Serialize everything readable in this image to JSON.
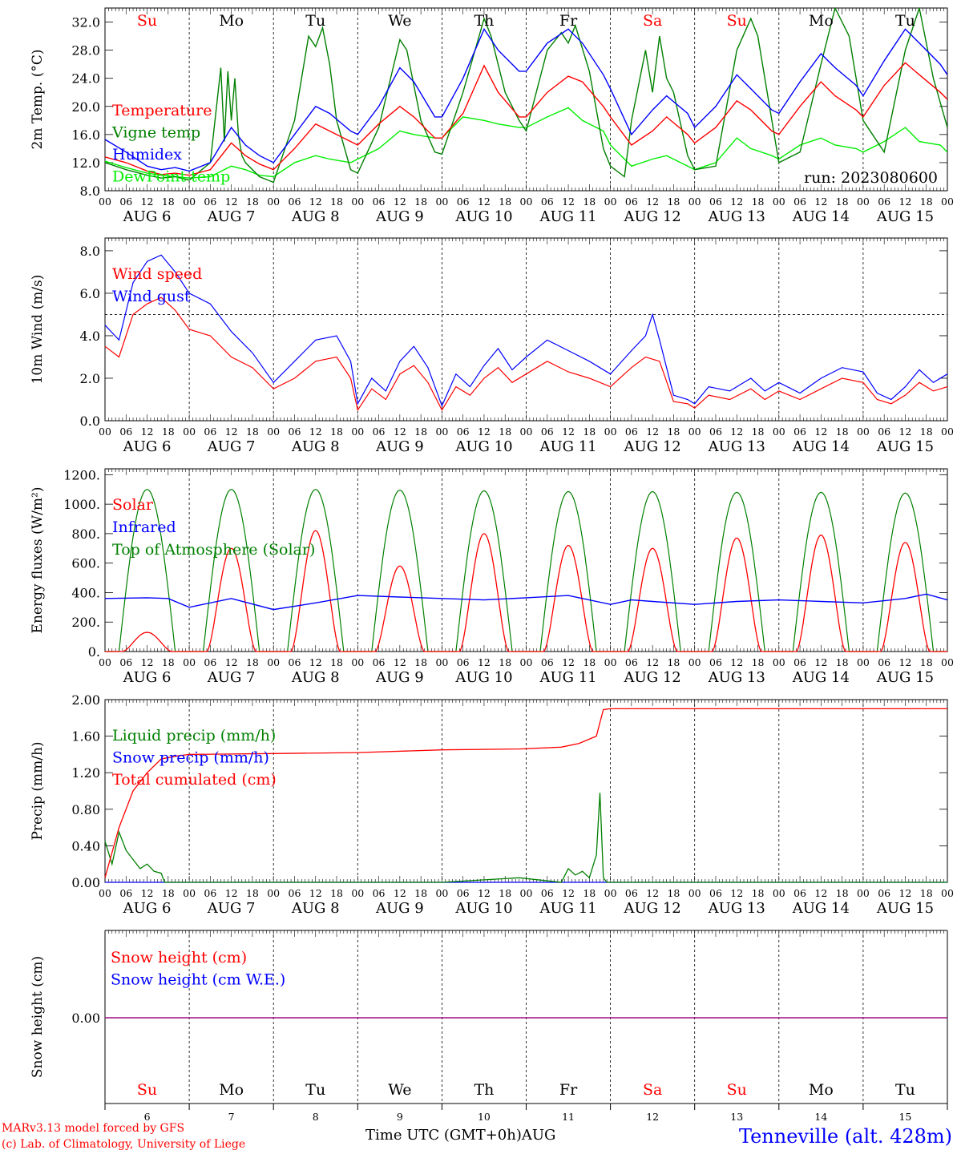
{
  "colors": {
    "red": "#ff0000",
    "green": "#008000",
    "light_green": "#00ee00",
    "blue": "#0000ff",
    "purple": "#8000a0",
    "black": "#000000"
  },
  "days": {
    "weekday_labels": [
      "Su",
      "Mo",
      "Tu",
      "We",
      "Th",
      "Fr",
      "Sa",
      "Su",
      "Mo",
      "Tu"
    ],
    "weekday_colors": [
      "#ff0000",
      "#000000",
      "#000000",
      "#000000",
      "#000000",
      "#000000",
      "#ff0000",
      "#ff0000",
      "#000000",
      "#000000"
    ],
    "date_labels": [
      "AUG  6",
      "AUG  7",
      "AUG  8",
      "AUG  9",
      "AUG 10",
      "AUG 11",
      "AUG 12",
      "AUG 13",
      "AUG 14",
      "AUG 15"
    ],
    "day_numbers": [
      "6",
      "7",
      "8",
      "9",
      "10",
      "11",
      "12",
      "13",
      "14",
      "15"
    ],
    "hour_ticks": [
      "00",
      "06",
      "12",
      "18"
    ],
    "final_hour_tick": "00"
  },
  "run_label": "run: 2023080600",
  "footer": {
    "credit_line1": "MARv3.13 model forced by GFS",
    "credit_line2": "(c) Lab. of Climatology, University of Liege",
    "x_axis_label": "Time UTC (GMT+0h)",
    "month": "AUG",
    "station": "Tenneville (alt. 428m)"
  },
  "chart_data": [
    {
      "type": "line",
      "id": "temperature",
      "ylabel": "2m Temp. (°C)",
      "ylim": [
        8,
        34
      ],
      "yticks": [
        "32.0",
        "28.0",
        "24.0",
        "20.0",
        "16.0",
        "12.0",
        "8.0"
      ],
      "ytick_values": [
        32,
        28,
        24,
        20,
        16,
        12,
        8
      ],
      "x_unit": "hours since AUG 6 00 UTC",
      "xlim": [
        0,
        240
      ],
      "series": [
        {
          "name": "Temperature",
          "color": "#ff0000",
          "x": [
            0,
            6,
            12,
            16,
            20,
            24,
            30,
            36,
            40,
            44,
            48,
            54,
            60,
            64,
            70,
            72,
            78,
            84,
            88,
            94,
            96,
            102,
            108,
            112,
            118,
            120,
            126,
            132,
            136,
            142,
            144,
            150,
            156,
            160,
            166,
            168,
            174,
            180,
            184,
            190,
            192,
            198,
            204,
            208,
            214,
            216,
            222,
            228,
            232,
            238,
            240
          ],
          "y": [
            12.8,
            12.0,
            10.8,
            10.3,
            10.5,
            10.2,
            11.0,
            14.8,
            13.0,
            11.8,
            11.0,
            14.0,
            17.5,
            16.5,
            15.0,
            14.5,
            17.5,
            20.0,
            18.5,
            15.5,
            15.5,
            19.0,
            25.8,
            22.0,
            18.5,
            18.5,
            22.0,
            24.3,
            23.5,
            20.0,
            18.5,
            14.5,
            16.5,
            18.5,
            16.0,
            14.8,
            17.0,
            20.8,
            19.5,
            16.5,
            16.0,
            20.0,
            23.5,
            21.5,
            19.5,
            18.5,
            23.0,
            26.2,
            24.5,
            22.0,
            21.0
          ]
        },
        {
          "name": "Vigne temp",
          "color": "#008000",
          "x": [
            0,
            6,
            12,
            16,
            20,
            24,
            30,
            33,
            34,
            35,
            36,
            37,
            38,
            39,
            40,
            44,
            48,
            54,
            58,
            60,
            62,
            64,
            66,
            70,
            72,
            78,
            84,
            86,
            90,
            94,
            96,
            102,
            108,
            110,
            114,
            118,
            120,
            126,
            130,
            132,
            134,
            138,
            142,
            144,
            148,
            150,
            154,
            156,
            158,
            160,
            162,
            166,
            168,
            174,
            180,
            184,
            186,
            190,
            192,
            198,
            204,
            208,
            212,
            216,
            222,
            228,
            232,
            236,
            240
          ],
          "y": [
            12.0,
            11.0,
            10.2,
            9.8,
            10.0,
            9.5,
            12.0,
            25.5,
            15.0,
            25.0,
            18.0,
            24.0,
            16.0,
            13.0,
            12.0,
            10.0,
            9.2,
            18.0,
            30.0,
            28.5,
            31.2,
            26.0,
            18.0,
            11.0,
            10.5,
            17.0,
            29.5,
            28.0,
            18.0,
            13.5,
            13.2,
            22.0,
            32.5,
            30.0,
            22.0,
            18.0,
            16.5,
            28.0,
            30.5,
            29.0,
            31.5,
            25.0,
            14.0,
            11.5,
            10.0,
            18.0,
            28.0,
            22.0,
            30.0,
            24.0,
            22.0,
            13.0,
            11.0,
            11.5,
            28.0,
            32.5,
            30.0,
            18.0,
            12.0,
            13.5,
            26.0,
            34.0,
            30.0,
            18.0,
            13.5,
            28.0,
            34.0,
            24.0,
            17.0
          ]
        },
        {
          "name": "Humidex",
          "color": "#0000ff",
          "x": [
            0,
            6,
            12,
            16,
            20,
            24,
            30,
            36,
            40,
            44,
            48,
            54,
            60,
            64,
            70,
            72,
            78,
            84,
            88,
            94,
            96,
            102,
            108,
            112,
            118,
            120,
            126,
            132,
            136,
            142,
            144,
            150,
            156,
            160,
            166,
            168,
            174,
            180,
            184,
            190,
            192,
            198,
            204,
            208,
            214,
            216,
            222,
            228,
            232,
            238,
            240
          ],
          "y": [
            15.3,
            13.5,
            11.5,
            11.0,
            11.3,
            10.8,
            12.0,
            17.0,
            14.5,
            13.0,
            12.0,
            16.0,
            20.0,
            19.0,
            16.5,
            16.0,
            20.0,
            25.5,
            23.5,
            18.5,
            18.5,
            24.0,
            31.0,
            28.0,
            25.0,
            25.0,
            29.0,
            31.0,
            29.0,
            24.5,
            22.5,
            16.0,
            19.5,
            21.5,
            19.0,
            17.0,
            20.0,
            24.5,
            22.5,
            19.5,
            19.0,
            23.5,
            27.5,
            25.5,
            23.0,
            21.5,
            26.5,
            31.0,
            29.0,
            26.0,
            24.5
          ]
        },
        {
          "name": "DewPoint temp",
          "color": "#00ee00",
          "x": [
            0,
            6,
            12,
            16,
            20,
            24,
            30,
            36,
            40,
            44,
            48,
            54,
            60,
            64,
            70,
            72,
            78,
            84,
            88,
            94,
            96,
            102,
            108,
            112,
            118,
            120,
            126,
            132,
            136,
            142,
            144,
            150,
            156,
            160,
            166,
            168,
            174,
            180,
            184,
            190,
            192,
            198,
            204,
            208,
            214,
            216,
            222,
            228,
            232,
            238,
            240
          ],
          "y": [
            12.2,
            11.3,
            10.5,
            10.2,
            10.0,
            9.8,
            10.0,
            11.5,
            11.0,
            10.2,
            10.0,
            12.0,
            13.0,
            12.5,
            12.0,
            12.5,
            14.0,
            16.5,
            16.0,
            15.5,
            15.5,
            18.5,
            18.0,
            17.5,
            17.0,
            17.0,
            18.5,
            19.8,
            18.0,
            16.5,
            14.5,
            11.5,
            12.5,
            13.0,
            11.5,
            11.0,
            12.0,
            15.5,
            14.0,
            13.0,
            12.5,
            14.5,
            15.5,
            14.5,
            14.0,
            13.5,
            15.0,
            17.0,
            15.0,
            14.5,
            13.5
          ]
        }
      ]
    },
    {
      "type": "line",
      "id": "wind",
      "ylabel": "10m Wind (m/s)",
      "ylim": [
        0,
        8.6
      ],
      "yticks": [
        "8.0",
        "6.0",
        "4.0",
        "2.0",
        "0.0"
      ],
      "ytick_values": [
        8,
        6,
        4,
        2,
        0
      ],
      "reference_line": 5,
      "x_unit": "hours since AUG 6 00 UTC",
      "xlim": [
        0,
        240
      ],
      "series": [
        {
          "name": "Wind speed",
          "color": "#ff0000",
          "x": [
            0,
            4,
            8,
            12,
            16,
            20,
            24,
            30,
            36,
            42,
            48,
            54,
            60,
            66,
            70,
            72,
            76,
            80,
            84,
            88,
            92,
            96,
            100,
            104,
            108,
            112,
            116,
            120,
            126,
            132,
            138,
            144,
            150,
            154,
            158,
            162,
            166,
            168,
            172,
            178,
            184,
            188,
            192,
            198,
            204,
            210,
            216,
            220,
            224,
            228,
            232,
            236,
            240
          ],
          "y": [
            3.5,
            3.0,
            5.0,
            5.5,
            5.8,
            5.2,
            4.3,
            4.0,
            3.0,
            2.5,
            1.5,
            2.0,
            2.8,
            3.0,
            2.0,
            0.5,
            1.5,
            1.0,
            2.2,
            2.6,
            1.8,
            0.5,
            1.6,
            1.2,
            2.0,
            2.5,
            1.8,
            2.2,
            2.8,
            2.3,
            2.0,
            1.6,
            2.5,
            3.0,
            2.8,
            0.9,
            0.8,
            0.6,
            1.2,
            1.0,
            1.5,
            1.0,
            1.4,
            1.0,
            1.5,
            2.0,
            1.8,
            1.0,
            0.8,
            1.2,
            1.8,
            1.4,
            1.6
          ]
        },
        {
          "name": "Wind gust",
          "color": "#0000ff",
          "x": [
            0,
            4,
            8,
            12,
            16,
            20,
            24,
            30,
            36,
            42,
            48,
            54,
            60,
            66,
            70,
            72,
            76,
            80,
            84,
            88,
            92,
            96,
            100,
            104,
            108,
            112,
            116,
            120,
            126,
            132,
            138,
            144,
            150,
            154,
            156,
            158,
            162,
            166,
            168,
            172,
            178,
            184,
            188,
            192,
            198,
            204,
            210,
            216,
            220,
            224,
            228,
            232,
            236,
            240
          ],
          "y": [
            4.5,
            3.8,
            6.5,
            7.5,
            7.8,
            7.0,
            6.0,
            5.5,
            4.2,
            3.2,
            1.8,
            2.8,
            3.8,
            4.0,
            2.8,
            0.8,
            2.0,
            1.4,
            2.8,
            3.5,
            2.5,
            0.7,
            2.2,
            1.6,
            2.6,
            3.4,
            2.4,
            3.0,
            3.8,
            3.3,
            2.8,
            2.2,
            3.3,
            4.0,
            5.0,
            3.8,
            1.2,
            1.0,
            0.8,
            1.6,
            1.4,
            2.0,
            1.4,
            1.8,
            1.3,
            2.0,
            2.5,
            2.3,
            1.3,
            1.0,
            1.6,
            2.4,
            1.8,
            2.2
          ]
        }
      ]
    },
    {
      "type": "line",
      "id": "energy",
      "ylabel": "Energy fluxes (W/m²)",
      "ylim": [
        0,
        1240
      ],
      "yticks": [
        "1200.",
        "1000.",
        "800.",
        "600.",
        "400.",
        "200.",
        "0."
      ],
      "ytick_values": [
        1200,
        1000,
        800,
        600,
        400,
        200,
        0
      ],
      "x_unit": "hours since AUG 6 00 UTC",
      "xlim": [
        0,
        240
      ],
      "toa_peaks": [
        1100,
        1100,
        1100,
        1095,
        1090,
        1085,
        1085,
        1080,
        1080,
        1075
      ],
      "solar_peaks": [
        130,
        700,
        820,
        580,
        800,
        720,
        700,
        770,
        790,
        740
      ],
      "series": [
        {
          "name": "Solar",
          "color": "#ff0000"
        },
        {
          "name": "Infrared",
          "color": "#0000ff",
          "x": [
            0,
            12,
            18,
            24,
            36,
            48,
            60,
            72,
            84,
            96,
            108,
            120,
            132,
            144,
            150,
            156,
            168,
            180,
            192,
            204,
            216,
            228,
            234,
            240
          ],
          "y": [
            360,
            365,
            360,
            300,
            360,
            285,
            330,
            380,
            370,
            360,
            350,
            365,
            380,
            320,
            350,
            340,
            320,
            340,
            350,
            340,
            330,
            360,
            390,
            350
          ]
        },
        {
          "name": "Top of Atmosphere (Solar)",
          "color": "#008000"
        }
      ]
    },
    {
      "type": "line",
      "id": "precip",
      "ylabel": "Precip (mm/h)",
      "ylim": [
        0,
        2
      ],
      "yticks": [
        "2.00",
        "1.60",
        "1.20",
        "0.80",
        "0.40",
        "0.00"
      ],
      "ytick_values": [
        2.0,
        1.6,
        1.2,
        0.8,
        0.4,
        0.0
      ],
      "x_unit": "hours since AUG 6 00 UTC",
      "xlim": [
        0,
        240
      ],
      "series": [
        {
          "name": "Liquid precip (mm/h)",
          "color": "#008000",
          "x": [
            0,
            2,
            4,
            6,
            8,
            10,
            12,
            14,
            16,
            17,
            24,
            96,
            118,
            130,
            132,
            134,
            136,
            138,
            140,
            141,
            142,
            143,
            144,
            240
          ],
          "y": [
            0.45,
            0.2,
            0.55,
            0.35,
            0.25,
            0.15,
            0.2,
            0.12,
            0.1,
            0.0,
            0.0,
            0.0,
            0.05,
            0.0,
            0.15,
            0.08,
            0.12,
            0.05,
            0.3,
            0.98,
            0.05,
            0.0,
            0.0,
            0.0
          ]
        },
        {
          "name": "Snow precip (mm/h)",
          "color": "#0000ff",
          "x": [
            0,
            240
          ],
          "y": [
            0,
            0
          ]
        },
        {
          "name": "Total cumulated (cm)",
          "color": "#ff0000",
          "x": [
            0,
            4,
            8,
            12,
            16,
            20,
            24,
            48,
            72,
            96,
            118,
            130,
            135,
            140,
            141,
            142,
            144,
            240
          ],
          "y": [
            0.05,
            0.6,
            1.0,
            1.2,
            1.35,
            1.38,
            1.4,
            1.41,
            1.42,
            1.45,
            1.46,
            1.48,
            1.52,
            1.6,
            1.75,
            1.89,
            1.9,
            1.9
          ]
        }
      ]
    },
    {
      "type": "line",
      "id": "snow",
      "ylabel": "Snow height (cm)",
      "yticks": [
        "0.00"
      ],
      "ytick_values": [
        0
      ],
      "x_unit": "hours since AUG 6 00 UTC",
      "xlim": [
        0,
        240
      ],
      "series": [
        {
          "name": "Snow height (cm)",
          "color": "#ff0000",
          "x": [
            0,
            240
          ],
          "y": [
            0,
            0
          ]
        },
        {
          "name": "Snow height (cm W.E.)",
          "color": "#0000ff",
          "x": [
            0,
            240
          ],
          "y": [
            0,
            0
          ]
        }
      ]
    }
  ]
}
